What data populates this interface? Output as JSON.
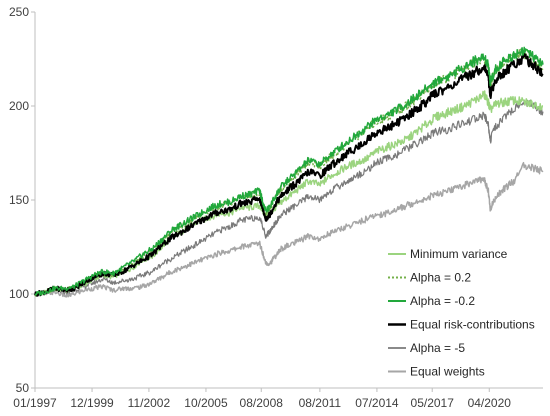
{
  "chart_data": {
    "type": "line",
    "title": "",
    "xlabel": "",
    "ylabel": "",
    "ylim": [
      50,
      250
    ],
    "yticks": [
      50,
      100,
      150,
      200,
      250
    ],
    "ytick_labels": [
      "50",
      "100",
      "150",
      "200",
      "250"
    ],
    "xlim": [
      1997.0,
      2023.0
    ],
    "xtick_labels": [
      "01/1997",
      "12/1999",
      "11/2002",
      "10/2005",
      "08/2008",
      "08/2011",
      "07/2014",
      "05/2017",
      "04/2020"
    ],
    "xtick_positions": [
      1997.0,
      1999.92,
      2002.83,
      2005.75,
      2008.58,
      2011.58,
      2014.5,
      2017.33,
      2020.25
    ],
    "grid": false,
    "legend_position": "bottom-right",
    "series": [
      {
        "name": "Minimum variance",
        "color": "#9bd47f",
        "style": "solid",
        "width": 1.5,
        "x": [
          1997.0,
          1997.5,
          1998.0,
          1998.6,
          1999.0,
          1999.5,
          2000.0,
          2000.5,
          2001.0,
          2001.5,
          2002.0,
          2002.5,
          2003.0,
          2003.5,
          2004.0,
          2004.5,
          2005.0,
          2005.5,
          2006.0,
          2006.5,
          2007.0,
          2007.5,
          2008.0,
          2008.5,
          2008.8,
          2009.0,
          2009.3,
          2009.6,
          2010.0,
          2010.5,
          2011.0,
          2011.6,
          2012.0,
          2012.5,
          2013.0,
          2013.5,
          2014.0,
          2014.5,
          2015.0,
          2015.5,
          2016.0,
          2016.5,
          2017.0,
          2017.5,
          2018.0,
          2018.5,
          2019.0,
          2019.5,
          2020.0,
          2020.2,
          2020.3,
          2020.6,
          2021.0,
          2021.5,
          2022.0,
          2022.5,
          2023.0
        ],
        "y": [
          100,
          101,
          103,
          102,
          103,
          105,
          108,
          110,
          109,
          112,
          114,
          118,
          120,
          125,
          130,
          133,
          137,
          139,
          141,
          143,
          143,
          146,
          146,
          147,
          141,
          142,
          146,
          149,
          152,
          156,
          160,
          158,
          162,
          165,
          168,
          170,
          172,
          176,
          178,
          180,
          182,
          186,
          190,
          194,
          196,
          198,
          200,
          203,
          206,
          202,
          198,
          201,
          202,
          203,
          202,
          201,
          200
        ]
      },
      {
        "name": "Alpha = 0.2",
        "color": "#74b04a",
        "style": "dotted",
        "width": 1.5,
        "x": [
          1997.0,
          1997.5,
          1998.0,
          1998.6,
          1999.0,
          1999.5,
          2000.0,
          2000.5,
          2001.0,
          2001.5,
          2002.0,
          2002.5,
          2003.0,
          2003.5,
          2004.0,
          2004.5,
          2005.0,
          2005.5,
          2006.0,
          2006.5,
          2007.0,
          2007.5,
          2008.0,
          2008.5,
          2008.8,
          2009.0,
          2009.3,
          2009.6,
          2010.0,
          2010.5,
          2011.0,
          2011.6,
          2012.0,
          2012.5,
          2013.0,
          2013.5,
          2014.0,
          2014.5,
          2015.0,
          2015.5,
          2016.0,
          2016.5,
          2017.0,
          2017.5,
          2018.0,
          2018.5,
          2019.0,
          2019.5,
          2020.0,
          2020.2,
          2020.3,
          2020.6,
          2021.0,
          2021.5,
          2022.0,
          2022.5,
          2023.0
        ],
        "y": [
          100,
          101,
          103,
          102,
          104,
          106,
          109,
          111,
          110,
          113,
          116,
          120,
          123,
          128,
          133,
          136,
          139,
          142,
          145,
          147,
          148,
          151,
          152,
          153,
          143,
          145,
          151,
          156,
          160,
          165,
          170,
          168,
          172,
          176,
          180,
          184,
          188,
          192,
          194,
          197,
          200,
          204,
          208,
          212,
          214,
          217,
          220,
          223,
          225,
          221,
          212,
          219,
          223,
          226,
          228,
          224,
          220
        ]
      },
      {
        "name": "Alpha = -0.2",
        "color": "#22a83c",
        "style": "solid",
        "width": 1.5,
        "x": [
          1997.0,
          1997.5,
          1998.0,
          1998.6,
          1999.0,
          1999.5,
          2000.0,
          2000.5,
          2001.0,
          2001.5,
          2002.0,
          2002.5,
          2003.0,
          2003.5,
          2004.0,
          2004.5,
          2005.0,
          2005.5,
          2006.0,
          2006.5,
          2007.0,
          2007.5,
          2008.0,
          2008.5,
          2008.8,
          2009.0,
          2009.3,
          2009.6,
          2010.0,
          2010.5,
          2011.0,
          2011.6,
          2012.0,
          2012.5,
          2013.0,
          2013.5,
          2014.0,
          2014.5,
          2015.0,
          2015.5,
          2016.0,
          2016.5,
          2017.0,
          2017.5,
          2018.0,
          2018.5,
          2019.0,
          2019.5,
          2020.0,
          2020.2,
          2020.3,
          2020.6,
          2021.0,
          2021.5,
          2022.0,
          2022.5,
          2023.0
        ],
        "y": [
          100,
          101,
          103,
          103,
          104,
          107,
          110,
          112,
          111,
          114,
          117,
          121,
          124,
          129,
          134,
          137,
          140,
          143,
          146,
          148,
          149,
          152,
          153,
          155,
          144,
          146,
          152,
          157,
          161,
          166,
          171,
          169,
          173,
          177,
          181,
          185,
          189,
          193,
          195,
          198,
          201,
          205,
          209,
          213,
          215,
          218,
          221,
          224,
          226,
          222,
          213,
          220,
          224,
          227,
          230,
          226,
          222
        ]
      },
      {
        "name": "Equal risk-contributions",
        "color": "#000000",
        "style": "solid",
        "width": 2,
        "x": [
          1997.0,
          1997.5,
          1998.0,
          1998.6,
          1999.0,
          1999.5,
          2000.0,
          2000.5,
          2001.0,
          2001.5,
          2002.0,
          2002.5,
          2003.0,
          2003.5,
          2004.0,
          2004.5,
          2005.0,
          2005.5,
          2006.0,
          2006.5,
          2007.0,
          2007.5,
          2008.0,
          2008.5,
          2008.8,
          2009.0,
          2009.3,
          2009.6,
          2010.0,
          2010.5,
          2011.0,
          2011.6,
          2012.0,
          2012.5,
          2013.0,
          2013.5,
          2014.0,
          2014.5,
          2015.0,
          2015.5,
          2016.0,
          2016.5,
          2017.0,
          2017.5,
          2018.0,
          2018.5,
          2019.0,
          2019.5,
          2020.0,
          2020.2,
          2020.3,
          2020.6,
          2021.0,
          2021.5,
          2022.0,
          2022.5,
          2023.0
        ],
        "y": [
          100,
          101,
          103,
          102,
          103,
          106,
          109,
          111,
          110,
          112,
          115,
          118,
          121,
          126,
          130,
          133,
          136,
          139,
          142,
          144,
          145,
          148,
          149,
          151,
          140,
          142,
          148,
          152,
          156,
          160,
          165,
          163,
          167,
          171,
          175,
          178,
          182,
          186,
          188,
          191,
          194,
          198,
          202,
          207,
          209,
          212,
          215,
          218,
          221,
          216,
          206,
          214,
          218,
          222,
          226,
          222,
          217
        ]
      },
      {
        "name": "Alpha = -5",
        "color": "#7a7a7a",
        "style": "solid",
        "width": 1.2,
        "x": [
          1997.0,
          1997.5,
          1998.0,
          1998.6,
          1999.0,
          1999.5,
          2000.0,
          2000.5,
          2001.0,
          2001.5,
          2002.0,
          2002.5,
          2003.0,
          2003.5,
          2004.0,
          2004.5,
          2005.0,
          2005.5,
          2006.0,
          2006.5,
          2007.0,
          2007.5,
          2008.0,
          2008.5,
          2008.8,
          2009.0,
          2009.3,
          2009.6,
          2010.0,
          2010.5,
          2011.0,
          2011.6,
          2012.0,
          2012.5,
          2013.0,
          2013.5,
          2014.0,
          2014.5,
          2015.0,
          2015.5,
          2016.0,
          2016.5,
          2017.0,
          2017.5,
          2018.0,
          2018.5,
          2019.0,
          2019.5,
          2020.0,
          2020.2,
          2020.3,
          2020.6,
          2021.0,
          2021.5,
          2022.0,
          2022.5,
          2023.0
        ],
        "y": [
          100,
          101,
          102,
          101,
          102,
          104,
          106,
          108,
          106,
          107,
          108,
          110,
          112,
          116,
          119,
          122,
          125,
          128,
          131,
          134,
          136,
          139,
          140,
          141,
          131,
          133,
          138,
          142,
          145,
          148,
          152,
          150,
          154,
          157,
          160,
          163,
          166,
          170,
          172,
          174,
          177,
          180,
          183,
          186,
          187,
          189,
          191,
          193,
          195,
          190,
          182,
          189,
          194,
          198,
          203,
          200,
          197
        ]
      },
      {
        "name": "Equal weights",
        "color": "#a6a6a6",
        "style": "solid",
        "width": 1.5,
        "x": [
          1997.0,
          1997.5,
          1998.0,
          1998.6,
          1999.0,
          1999.5,
          2000.0,
          2000.5,
          2001.0,
          2001.5,
          2002.0,
          2002.5,
          2003.0,
          2003.5,
          2004.0,
          2004.5,
          2005.0,
          2005.5,
          2006.0,
          2006.5,
          2007.0,
          2007.5,
          2008.0,
          2008.5,
          2008.8,
          2009.0,
          2009.3,
          2009.6,
          2010.0,
          2010.5,
          2011.0,
          2011.6,
          2012.0,
          2012.5,
          2013.0,
          2013.5,
          2014.0,
          2014.5,
          2015.0,
          2015.5,
          2016.0,
          2016.5,
          2017.0,
          2017.5,
          2018.0,
          2018.5,
          2019.0,
          2019.5,
          2020.0,
          2020.2,
          2020.3,
          2020.6,
          2021.0,
          2021.5,
          2022.0,
          2022.5,
          2023.0
        ],
        "y": [
          100,
          100,
          101,
          99,
          100,
          102,
          103,
          104,
          102,
          103,
          103,
          104,
          106,
          109,
          112,
          114,
          116,
          118,
          120,
          122,
          123,
          125,
          126,
          127,
          117,
          116,
          120,
          124,
          126,
          128,
          131,
          129,
          132,
          134,
          136,
          138,
          140,
          142,
          143,
          145,
          147,
          149,
          151,
          153,
          154,
          156,
          158,
          160,
          161,
          155,
          145,
          152,
          156,
          160,
          168,
          167,
          165
        ]
      }
    ]
  }
}
